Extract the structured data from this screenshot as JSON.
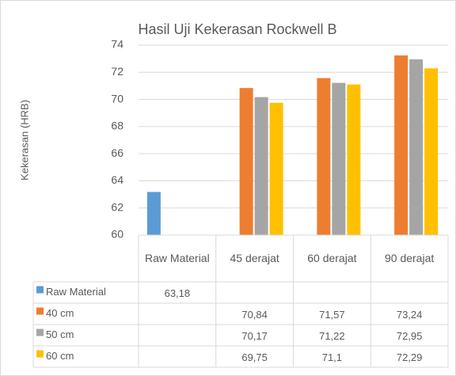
{
  "chart_data": {
    "type": "bar",
    "title": "Hasil Uji Kekerasan Rockwell B",
    "y_label": "Kekerasan (HRB)",
    "categories": [
      "Raw Material",
      "45 derajat",
      "60 derajat",
      "90 derajat"
    ],
    "series": [
      {
        "name": "Raw Material",
        "color": "#5b9bd5",
        "values": [
          63.18,
          null,
          null,
          null
        ],
        "value_labels": [
          "63,18",
          null,
          null,
          null
        ]
      },
      {
        "name": "40 cm",
        "color": "#ed7d31",
        "values": [
          null,
          70.84,
          71.57,
          73.24
        ],
        "value_labels": [
          null,
          "70,84",
          "71,57",
          "73,24"
        ]
      },
      {
        "name": "50 cm",
        "color": "#a5a5a5",
        "values": [
          null,
          70.17,
          71.22,
          72.95
        ],
        "value_labels": [
          null,
          "70,17",
          "71,22",
          "72,95"
        ]
      },
      {
        "name": "60 cm",
        "color": "#ffc000",
        "values": [
          null,
          69.75,
          71.1,
          72.29
        ],
        "value_labels": [
          null,
          "69,75",
          "71,1",
          "72,29"
        ]
      }
    ],
    "ylim": [
      60,
      74
    ],
    "yticks": [
      60,
      62,
      64,
      66,
      68,
      70,
      72,
      74
    ],
    "grid": true
  }
}
